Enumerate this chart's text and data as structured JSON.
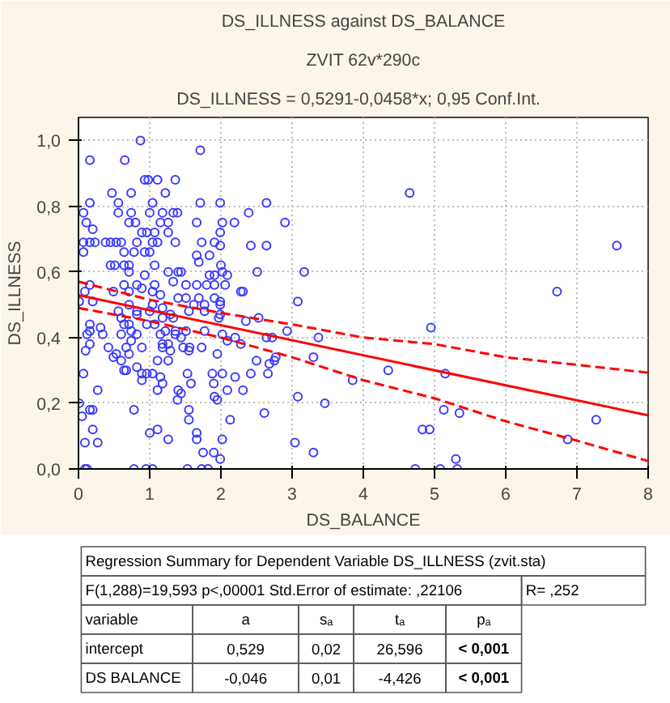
{
  "chart_data": {
    "type": "scatter",
    "title": "DS_ILLNESS against DS_BALANCE",
    "subtitle": "ZVIT 62v*290c",
    "xlabel": "DS_BALANCE",
    "ylabel": "DS_ILLNESS",
    "xlim": [
      0,
      8
    ],
    "ylim": [
      0,
      1.07
    ],
    "xticks": [
      0,
      1,
      2,
      3,
      4,
      5,
      6,
      7,
      8
    ],
    "yticks": [
      {
        "value": 0,
        "label": "0,0"
      },
      {
        "value": 0.2,
        "label": "0,2"
      },
      {
        "value": 0.4,
        "label": "0,4"
      },
      {
        "value": 0.6,
        "label": "0,6"
      },
      {
        "value": 0.8,
        "label": "0,8"
      },
      {
        "value": 1.0,
        "label": "1,0"
      }
    ],
    "grid": true,
    "annotations": [
      "DS_ILLNESS   = 0,5291-0,0458*x; 0,95 Conf.Int.",
      "Regression Summary for Dependent Variable  DS_ILLNESS (zvit.sta)",
      "F(1,288)=19,593 p<,00001 Std.Error of estimate: ,22106",
      "R= ,252",
      "variable",
      "a",
      "sₐ",
      "tₐ",
      "pₐ",
      "intercept",
      "0,529",
      "0,02",
      "26,596",
      "< 0,001",
      "DS BALANCE",
      "-0,046",
      "0,01",
      "-4,426",
      "< 0,001"
    ],
    "series": [
      {
        "color": "#3a3aff",
        "marker": "circle",
        "x": [
          0.87,
          0.16,
          0.65,
          1.71,
          0.93,
          0.98,
          1.11,
          1.36,
          0.47,
          1.22,
          0.74,
          0.16,
          0.56,
          1.04,
          1.71,
          1.99,
          2.64,
          0.07,
          0.56,
          0.74,
          1.0,
          1.18,
          1.33,
          1.39,
          2.39,
          0.11,
          0.71,
          0.8,
          1.15,
          1.26,
          1.66,
          2.02,
          2.19,
          2.9,
          0.2,
          0.89,
          0.96,
          1.07,
          1.26,
          1.99,
          0.07,
          0.16,
          0.23,
          0.38,
          0.45,
          0.53,
          0.6,
          0.82,
          1.04,
          1.11,
          1.36,
          1.73,
          1.91,
          1.99,
          2.42,
          2.64,
          0.07,
          0.64,
          0.78,
          0.93,
          1.0,
          1.66,
          1.84,
          0.45,
          0.51,
          0.64,
          0.71,
          1.07,
          1.69,
          2.0,
          0.71,
          0.93,
          1.26,
          1.4,
          1.44,
          1.84,
          1.91,
          2.02,
          2.09,
          2.51,
          3.17,
          0.16,
          0.64,
          0.82,
          1.07,
          1.33,
          1.51,
          1.66,
          1.8,
          1.91,
          2.06,
          2.28,
          0.09,
          0.49,
          0.71,
          0.89,
          1.04,
          1.15,
          1.4,
          1.51,
          1.69,
          1.91,
          1.99,
          2.31,
          0.01,
          0.2,
          0.71,
          1.04,
          1.18,
          1.62,
          1.77,
          1.99,
          3.08,
          0.56,
          0.82,
          1.0,
          1.29,
          1.55,
          1.77,
          1.97,
          2.35,
          2.53,
          0.16,
          0.6,
          0.82,
          1.18,
          1.33,
          1.99,
          0.16,
          0.31,
          0.64,
          0.71,
          0.74,
          0.96,
          1.07,
          1.22,
          1.36,
          1.51,
          1.77,
          2.02,
          2.2,
          2.72,
          2.93,
          3.37,
          0.12,
          0.34,
          0.6,
          0.82,
          1.15,
          1.36,
          1.44,
          2.09,
          0.16,
          0.42,
          0.67,
          0.74,
          1.18,
          1.26,
          1.47,
          1.56,
          1.95,
          2.28,
          2.64,
          0.1,
          0.53,
          0.71,
          0.89,
          1.18,
          1.29,
          1.73,
          0.49,
          0.6,
          1.11,
          1.26,
          1.55,
          2.5,
          2.75,
          2.77,
          3.3,
          0.64,
          0.67,
          0.82,
          0.89,
          0.96,
          1.04,
          1.15,
          1.53,
          1.88,
          2.02,
          2.2,
          2.42,
          2.66,
          3.85,
          0.07,
          0.89,
          1.18,
          1.58,
          1.9,
          2.09,
          2.31,
          2.68,
          0.27,
          1.4,
          1.44,
          1.11,
          1.91,
          1.95,
          1.39,
          3.08,
          3.46,
          0.01,
          0.05,
          0.16,
          0.2,
          0.78,
          1.55,
          1.55,
          2.13,
          2.61,
          0.2,
          1.0,
          1.11,
          1.26,
          1.66,
          1.66,
          2.02,
          0.09,
          0.27,
          3.04,
          1.75,
          1.9,
          1.99,
          3.3,
          0.09,
          0.12,
          0.78,
          0.95,
          1.04,
          1.53,
          1.73,
          1.82,
          4.65,
          7.56,
          6.72,
          4.95,
          4.35,
          5.15,
          5.13,
          5.35,
          4.83,
          4.93,
          7.27,
          6.87,
          5.3,
          4.73,
          5.08,
          5.32
        ],
        "values": [
          1.0,
          0.94,
          0.94,
          0.97,
          0.88,
          0.88,
          0.88,
          0.88,
          0.84,
          0.84,
          0.84,
          0.81,
          0.81,
          0.81,
          0.81,
          0.81,
          0.81,
          0.78,
          0.78,
          0.78,
          0.78,
          0.78,
          0.78,
          0.78,
          0.78,
          0.75,
          0.75,
          0.75,
          0.75,
          0.75,
          0.75,
          0.75,
          0.75,
          0.75,
          0.73,
          0.72,
          0.72,
          0.72,
          0.72,
          0.72,
          0.69,
          0.69,
          0.69,
          0.69,
          0.69,
          0.69,
          0.69,
          0.69,
          0.69,
          0.69,
          0.69,
          0.69,
          0.69,
          0.68,
          0.68,
          0.68,
          0.66,
          0.66,
          0.66,
          0.66,
          0.66,
          0.65,
          0.65,
          0.62,
          0.62,
          0.62,
          0.62,
          0.62,
          0.63,
          0.62,
          0.6,
          0.59,
          0.6,
          0.6,
          0.6,
          0.59,
          0.59,
          0.6,
          0.59,
          0.6,
          0.6,
          0.56,
          0.56,
          0.56,
          0.56,
          0.57,
          0.56,
          0.56,
          0.56,
          0.56,
          0.56,
          0.54,
          0.54,
          0.54,
          0.54,
          0.55,
          0.54,
          0.53,
          0.52,
          0.52,
          0.52,
          0.52,
          0.51,
          0.54,
          0.51,
          0.51,
          0.5,
          0.5,
          0.49,
          0.5,
          0.5,
          0.5,
          0.51,
          0.48,
          0.48,
          0.48,
          0.47,
          0.48,
          0.48,
          0.46,
          0.45,
          0.46,
          0.44,
          0.46,
          0.47,
          0.46,
          0.46,
          0.47,
          0.42,
          0.43,
          0.44,
          0.44,
          0.42,
          0.44,
          0.44,
          0.42,
          0.42,
          0.42,
          0.42,
          0.41,
          0.4,
          0.4,
          0.42,
          0.4,
          0.41,
          0.41,
          0.41,
          0.41,
          0.41,
          0.41,
          0.4,
          0.39,
          0.38,
          0.37,
          0.37,
          0.39,
          0.38,
          0.38,
          0.37,
          0.37,
          0.35,
          0.38,
          0.4,
          0.36,
          0.35,
          0.35,
          0.37,
          0.37,
          0.36,
          0.37,
          0.34,
          0.33,
          0.33,
          0.33,
          0.36,
          0.33,
          0.33,
          0.34,
          0.34,
          0.3,
          0.3,
          0.31,
          0.29,
          0.29,
          0.29,
          0.28,
          0.29,
          0.29,
          0.29,
          0.28,
          0.29,
          0.29,
          0.27,
          0.29,
          0.27,
          0.26,
          0.26,
          0.26,
          0.24,
          0.24,
          0.32,
          0.24,
          0.24,
          0.23,
          0.24,
          0.22,
          0.21,
          0.21,
          0.22,
          0.2,
          0.2,
          0.16,
          0.18,
          0.18,
          0.18,
          0.18,
          0.15,
          0.15,
          0.17,
          0.12,
          0.11,
          0.12,
          0.09,
          0.11,
          0.09,
          0.09,
          0.08,
          0.08,
          0.08,
          0.05,
          0.05,
          0.03,
          0.05,
          0,
          0,
          0,
          0,
          0,
          0,
          0,
          0,
          0.84,
          0.68,
          0.54,
          0.43,
          0.3,
          0.29,
          0.18,
          0.17,
          0.12,
          0.12,
          0.15,
          0.09,
          0.03,
          0,
          0,
          0
        ]
      },
      {
        "type": "line",
        "color": "#ff0000",
        "line_style": "solid",
        "x": [
          0,
          8
        ],
        "values": [
          0.529,
          0.163
        ]
      },
      {
        "type": "line",
        "color": "#ff0000",
        "line_style": "dashed",
        "x": [
          0,
          1,
          2,
          3,
          4,
          5,
          6,
          7,
          8
        ],
        "values": [
          0.57,
          0.515,
          0.475,
          0.44,
          0.4,
          0.38,
          0.34,
          0.317,
          0.293
        ]
      },
      {
        "type": "line",
        "color": "#ff0000",
        "line_style": "dashed",
        "x": [
          0,
          1,
          2,
          3,
          4,
          5,
          6,
          7,
          8
        ],
        "values": [
          0.49,
          0.45,
          0.4,
          0.34,
          0.27,
          0.215,
          0.145,
          0.086,
          0.024
        ]
      }
    ]
  }
}
